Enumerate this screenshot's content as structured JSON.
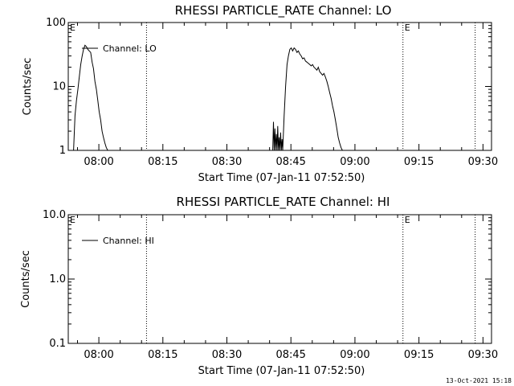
{
  "chart_data": [
    {
      "type": "line",
      "title": "RHESSI PARTICLE_RATE Channel: LO",
      "xlabel": "Start Time (07-Jan-11 07:52:50)",
      "ylabel": "Counts/sec",
      "yscale": "log",
      "ylim": [
        1,
        100
      ],
      "yticks": [
        1,
        10,
        100
      ],
      "ytick_labels": [
        "1",
        "10",
        "100"
      ],
      "xlim": [
        "07:52:50",
        "09:32:00"
      ],
      "xticks": [
        "08:00",
        "08:15",
        "08:30",
        "08:45",
        "09:00",
        "09:15",
        "09:30"
      ],
      "grid": false,
      "legend": {
        "placement": "top-left",
        "entries": [
          "Channel: LO"
        ]
      },
      "eclipse_markers": [
        {
          "time": "08:11:10",
          "label": ""
        },
        {
          "time": "09:11:15",
          "label": "E"
        },
        {
          "time": "09:28:10",
          "label": ""
        }
      ],
      "series": [
        {
          "name": "Channel: LO",
          "x": [
            "07:54:05",
            "07:54:25",
            "07:54:45",
            "07:55:05",
            "07:55:25",
            "07:55:45",
            "07:56:05",
            "07:56:25",
            "07:56:45",
            "07:57:05",
            "07:57:25",
            "07:57:45",
            "07:58:05",
            "07:58:25",
            "07:58:45",
            "07:59:05",
            "07:59:25",
            "07:59:45",
            "08:00:05",
            "08:00:25",
            "08:00:45",
            "08:01:05",
            "08:01:25",
            "08:01:45",
            "08:02:05",
            "08:02:25"
          ],
          "y": [
            1.0,
            3.5,
            6.0,
            9.0,
            14.0,
            22.0,
            30.0,
            38.0,
            44.0,
            42.0,
            38.0,
            36.0,
            34.0,
            24.0,
            19.0,
            12.0,
            9.0,
            6.0,
            4.0,
            3.0,
            2.0,
            1.6,
            1.3,
            1.1,
            1.0,
            1.0
          ]
        },
        {
          "name": "Channel: LO",
          "x": [
            "08:40:45",
            "08:40:55",
            "08:41:05",
            "08:41:15",
            "08:41:25",
            "08:41:35",
            "08:41:45",
            "08:41:55",
            "08:42:05",
            "08:42:15",
            "08:42:25",
            "08:42:35",
            "08:42:45",
            "08:42:55",
            "08:43:05",
            "08:43:25",
            "08:43:45",
            "08:44:05",
            "08:44:25",
            "08:44:45",
            "08:45:05",
            "08:45:25",
            "08:45:45",
            "08:46:05",
            "08:46:25",
            "08:46:45",
            "08:47:05",
            "08:47:25",
            "08:47:45",
            "08:48:05",
            "08:48:25",
            "08:48:45",
            "08:49:05",
            "08:49:25",
            "08:49:45",
            "08:50:05",
            "08:50:25",
            "08:50:45",
            "08:51:05",
            "08:51:25",
            "08:51:45",
            "08:52:05",
            "08:52:25",
            "08:52:45",
            "08:53:05",
            "08:53:25",
            "08:53:45",
            "08:54:05",
            "08:54:25",
            "08:54:45",
            "08:55:05",
            "08:55:25",
            "08:55:45",
            "08:56:05",
            "08:56:25",
            "08:56:45",
            "08:57:05"
          ],
          "y": [
            1.0,
            2.8,
            1.0,
            2.2,
            1.0,
            1.8,
            1.0,
            2.4,
            1.0,
            1.6,
            1.0,
            1.9,
            1.0,
            1.5,
            1.0,
            3.5,
            10.0,
            22.0,
            30.0,
            38.0,
            40.0,
            36.0,
            40.0,
            38.0,
            34.0,
            36.0,
            32.0,
            30.0,
            27.0,
            28.0,
            25.0,
            24.0,
            23.0,
            22.0,
            21.0,
            22.0,
            20.0,
            19.0,
            18.0,
            20.0,
            17.0,
            16.0,
            15.0,
            16.0,
            14.0,
            12.0,
            10.0,
            8.0,
            6.5,
            5.0,
            4.0,
            3.0,
            2.2,
            1.6,
            1.3,
            1.1,
            1.0
          ]
        }
      ]
    },
    {
      "type": "line",
      "title": "RHESSI PARTICLE_RATE Channel: HI",
      "xlabel": "Start Time (07-Jan-11 07:52:50)",
      "ylabel": "Counts/sec",
      "yscale": "log",
      "ylim": [
        0.1,
        10
      ],
      "yticks": [
        0.1,
        1,
        10
      ],
      "ytick_labels": [
        "0.1",
        "1.0",
        "10.0"
      ],
      "xlim": [
        "07:52:50",
        "09:32:00"
      ],
      "xticks": [
        "08:00",
        "08:15",
        "08:30",
        "08:45",
        "09:00",
        "09:15",
        "09:30"
      ],
      "grid": false,
      "legend": {
        "placement": "top-left",
        "entries": [
          "Channel: HI"
        ]
      },
      "eclipse_markers": [
        {
          "time": "08:11:10",
          "label": ""
        },
        {
          "time": "09:11:15",
          "label": "E"
        },
        {
          "time": "09:28:10",
          "label": ""
        }
      ],
      "series": [
        {
          "name": "Channel: HI",
          "x": [],
          "y": []
        }
      ]
    }
  ],
  "corner_markers": {
    "panel_left": "E"
  },
  "footer": {
    "timestamp": "13-Oct-2021 15:18"
  }
}
